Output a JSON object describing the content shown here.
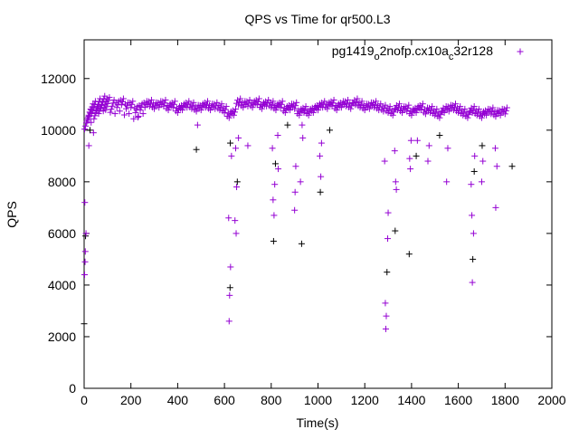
{
  "chart_data": {
    "type": "scatter",
    "title": "QPS vs Time for qr500.L3",
    "xlabel": "Time(s)",
    "ylabel": "QPS",
    "xlim": [
      0,
      2000
    ],
    "ylim": [
      0,
      13500
    ],
    "xticks": [
      0,
      200,
      400,
      600,
      800,
      1000,
      1200,
      1400,
      1600,
      1800,
      2000
    ],
    "yticks": [
      0,
      2000,
      4000,
      6000,
      8000,
      10000,
      12000
    ],
    "grid": false,
    "legend_position": "top-right",
    "series": [
      {
        "name": "pg1419_o2nofp.cx10a_c32r128",
        "legend_parts": [
          "pg1419",
          "o",
          "2nofp.cx10a",
          "c",
          "32r128"
        ],
        "color": "#9400d3",
        "baseline": [
          [
            10,
            10400
          ],
          [
            20,
            10700
          ],
          [
            30,
            10900
          ],
          [
            40,
            11000
          ],
          [
            50,
            10800
          ],
          [
            60,
            11100
          ],
          [
            70,
            11000
          ],
          [
            80,
            11200
          ],
          [
            90,
            11100
          ],
          [
            100,
            11150
          ],
          [
            120,
            11050
          ],
          [
            140,
            11000
          ],
          [
            160,
            11100
          ],
          [
            180,
            10950
          ],
          [
            200,
            11000
          ],
          [
            220,
            10800
          ],
          [
            240,
            10900
          ],
          [
            260,
            11000
          ],
          [
            280,
            11050
          ],
          [
            300,
            10950
          ],
          [
            320,
            11000
          ],
          [
            340,
            11050
          ],
          [
            360,
            10900
          ],
          [
            380,
            11000
          ],
          [
            400,
            10800
          ],
          [
            420,
            10900
          ],
          [
            440,
            11000
          ],
          [
            460,
            10950
          ],
          [
            480,
            10850
          ],
          [
            500,
            10900
          ],
          [
            520,
            11000
          ],
          [
            540,
            10900
          ],
          [
            560,
            10950
          ],
          [
            580,
            10900
          ],
          [
            600,
            10800
          ],
          [
            620,
            10600
          ],
          [
            640,
            10700
          ],
          [
            660,
            11100
          ],
          [
            680,
            11000
          ],
          [
            700,
            11050
          ],
          [
            720,
            11000
          ],
          [
            740,
            11100
          ],
          [
            760,
            10950
          ],
          [
            780,
            11050
          ],
          [
            800,
            11000
          ],
          [
            820,
            10900
          ],
          [
            840,
            11000
          ],
          [
            860,
            10800
          ],
          [
            880,
            10900
          ],
          [
            900,
            10950
          ],
          [
            920,
            10700
          ],
          [
            940,
            10800
          ],
          [
            960,
            10700
          ],
          [
            980,
            10800
          ],
          [
            1000,
            10900
          ],
          [
            1020,
            11000
          ],
          [
            1040,
            10950
          ],
          [
            1060,
            11050
          ],
          [
            1080,
            10900
          ],
          [
            1100,
            11000
          ],
          [
            1120,
            11050
          ],
          [
            1140,
            10950
          ],
          [
            1160,
            11100
          ],
          [
            1180,
            11000
          ],
          [
            1200,
            10900
          ],
          [
            1220,
            10950
          ],
          [
            1240,
            11000
          ],
          [
            1260,
            10900
          ],
          [
            1280,
            10850
          ],
          [
            1300,
            10800
          ],
          [
            1320,
            10700
          ],
          [
            1340,
            10900
          ],
          [
            1360,
            10800
          ],
          [
            1380,
            10850
          ],
          [
            1400,
            10700
          ],
          [
            1420,
            10800
          ],
          [
            1440,
            10900
          ],
          [
            1460,
            10750
          ],
          [
            1480,
            10800
          ],
          [
            1500,
            10700
          ],
          [
            1520,
            10600
          ],
          [
            1540,
            10800
          ],
          [
            1560,
            10850
          ],
          [
            1580,
            10900
          ],
          [
            1600,
            10800
          ],
          [
            1620,
            10700
          ],
          [
            1640,
            10600
          ],
          [
            1660,
            10800
          ],
          [
            1680,
            10700
          ],
          [
            1700,
            10600
          ],
          [
            1720,
            10700
          ],
          [
            1740,
            10750
          ],
          [
            1760,
            10650
          ],
          [
            1780,
            10700
          ],
          [
            1800,
            10750
          ]
        ],
        "dips": [
          [
            0,
            2500
          ],
          [
            2,
            4400
          ],
          [
            4,
            4900
          ],
          [
            5,
            5300
          ],
          [
            6,
            5900
          ],
          [
            8,
            6000
          ],
          [
            3,
            7200
          ],
          [
            20,
            9400
          ],
          [
            25,
            10000
          ],
          [
            30,
            10300
          ],
          [
            40,
            9900
          ],
          [
            230,
            10500
          ],
          [
            480,
            9250
          ],
          [
            485,
            10200
          ],
          [
            620,
            2600
          ],
          [
            622,
            3600
          ],
          [
            624,
            3900
          ],
          [
            626,
            4700
          ],
          [
            618,
            6600
          ],
          [
            630,
            9000
          ],
          [
            625,
            9500
          ],
          [
            650,
            6000
          ],
          [
            645,
            6500
          ],
          [
            652,
            7800
          ],
          [
            655,
            8000
          ],
          [
            648,
            9300
          ],
          [
            660,
            9700
          ],
          [
            700,
            9400
          ],
          [
            810,
            5700
          ],
          [
            812,
            6700
          ],
          [
            808,
            7300
          ],
          [
            815,
            7900
          ],
          [
            818,
            8700
          ],
          [
            805,
            9300
          ],
          [
            830,
            8500
          ],
          [
            828,
            9800
          ],
          [
            870,
            10200
          ],
          [
            900,
            6900
          ],
          [
            902,
            7600
          ],
          [
            905,
            8600
          ],
          [
            930,
            5600
          ],
          [
            925,
            8000
          ],
          [
            935,
            9700
          ],
          [
            932,
            10200
          ],
          [
            1010,
            7600
          ],
          [
            1012,
            8200
          ],
          [
            1008,
            9000
          ],
          [
            1015,
            9500
          ],
          [
            1050,
            10000
          ],
          [
            1290,
            2300
          ],
          [
            1292,
            2800
          ],
          [
            1288,
            3300
          ],
          [
            1295,
            4500
          ],
          [
            1298,
            5800
          ],
          [
            1300,
            6800
          ],
          [
            1285,
            8800
          ],
          [
            1330,
            6100
          ],
          [
            1335,
            7700
          ],
          [
            1332,
            8000
          ],
          [
            1328,
            9200
          ],
          [
            1390,
            5200
          ],
          [
            1395,
            8500
          ],
          [
            1392,
            8900
          ],
          [
            1398,
            9600
          ],
          [
            1420,
            9000
          ],
          [
            1425,
            9600
          ],
          [
            1470,
            8800
          ],
          [
            1475,
            9400
          ],
          [
            1520,
            9800
          ],
          [
            1550,
            8000
          ],
          [
            1555,
            9300
          ],
          [
            1660,
            4100
          ],
          [
            1662,
            5000
          ],
          [
            1665,
            6000
          ],
          [
            1658,
            6700
          ],
          [
            1655,
            7900
          ],
          [
            1668,
            8400
          ],
          [
            1670,
            9000
          ],
          [
            1700,
            8000
          ],
          [
            1705,
            8800
          ],
          [
            1702,
            9400
          ],
          [
            1760,
            7000
          ],
          [
            1765,
            8600
          ],
          [
            1758,
            9300
          ],
          [
            1830,
            8600
          ]
        ]
      }
    ]
  }
}
